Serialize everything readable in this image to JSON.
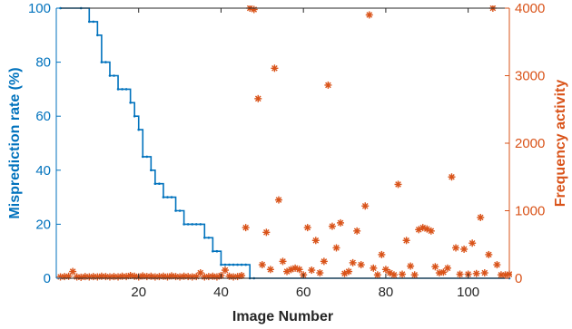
{
  "chart_data": {
    "type": "line+scatter",
    "xlabel": "Image Number",
    "ylabel_left": "Misprediction rate (%)",
    "ylabel_right": "Frequency activity",
    "xlim": [
      0,
      110
    ],
    "ylim_left": [
      0,
      100
    ],
    "ylim_right": [
      0,
      4000
    ],
    "x_ticks": [
      20,
      40,
      60,
      80,
      100
    ],
    "y_ticks_left": [
      0,
      20,
      40,
      60,
      80,
      100
    ],
    "y_ticks_right": [
      0,
      1000,
      2000,
      3000,
      4000
    ],
    "grid": false,
    "colors": {
      "left": "#0072BD",
      "right": "#D95319",
      "axes": "#262626"
    },
    "series": [
      {
        "axis": "left",
        "style": "stairs",
        "x": [
          1,
          6,
          8,
          9,
          10,
          11,
          12,
          13,
          14,
          15,
          16,
          17,
          18,
          19,
          20,
          21,
          22,
          23,
          24,
          25,
          26,
          27,
          28,
          29,
          30,
          31,
          32,
          33,
          34,
          35,
          36,
          37,
          38,
          39,
          40,
          41,
          42,
          43,
          44,
          45,
          46,
          47,
          48,
          110
        ],
        "values": [
          100,
          100,
          95,
          95,
          90,
          80,
          80,
          75,
          75,
          70,
          70,
          70,
          65,
          60,
          55,
          45,
          45,
          40,
          35,
          35,
          30,
          30,
          30,
          25,
          25,
          20,
          20,
          20,
          20,
          20,
          15,
          15,
          10,
          10,
          5,
          5,
          5,
          5,
          5,
          5,
          5,
          0,
          0,
          0
        ]
      },
      {
        "axis": "right",
        "marker": "*",
        "x": [
          1,
          2,
          3,
          4,
          5,
          6,
          7,
          8,
          9,
          10,
          11,
          12,
          13,
          14,
          15,
          16,
          17,
          18,
          19,
          20,
          21,
          22,
          23,
          24,
          25,
          26,
          27,
          28,
          29,
          30,
          31,
          32,
          33,
          34,
          35,
          36,
          37,
          38,
          39,
          40,
          41,
          42,
          43,
          44,
          45,
          46,
          47,
          48,
          49,
          50,
          51,
          52,
          53,
          54,
          55,
          56,
          57,
          58,
          59,
          60,
          61,
          62,
          63,
          64,
          65,
          66,
          67,
          68,
          69,
          70,
          71,
          72,
          73,
          74,
          75,
          76,
          77,
          78,
          79,
          80,
          81,
          82,
          83,
          84,
          85,
          86,
          87,
          88,
          89,
          90,
          91,
          92,
          93,
          94,
          95,
          96,
          97,
          98,
          99,
          100,
          101,
          102,
          103,
          104,
          105,
          106,
          107,
          108,
          109,
          110
        ],
        "values": [
          20,
          25,
          30,
          100,
          20,
          15,
          25,
          20,
          25,
          20,
          30,
          25,
          20,
          25,
          20,
          30,
          25,
          40,
          30,
          20,
          35,
          25,
          30,
          20,
          25,
          30,
          20,
          35,
          25,
          20,
          30,
          25,
          20,
          25,
          80,
          20,
          25,
          30,
          20,
          40,
          120,
          30,
          20,
          25,
          40,
          750,
          4000,
          3980,
          2660,
          200,
          680,
          130,
          3110,
          1160,
          250,
          100,
          130,
          150,
          130,
          50,
          750,
          120,
          560,
          80,
          250,
          2860,
          770,
          450,
          820,
          70,
          100,
          230,
          700,
          200,
          1070,
          3900,
          150,
          50,
          350,
          130,
          80,
          50,
          1390,
          60,
          560,
          180,
          50,
          720,
          750,
          730,
          700,
          170,
          80,
          90,
          150,
          1500,
          450,
          60,
          430,
          60,
          520,
          70,
          900,
          80,
          350,
          4000,
          200,
          50,
          50,
          60
        ]
      }
    ]
  }
}
